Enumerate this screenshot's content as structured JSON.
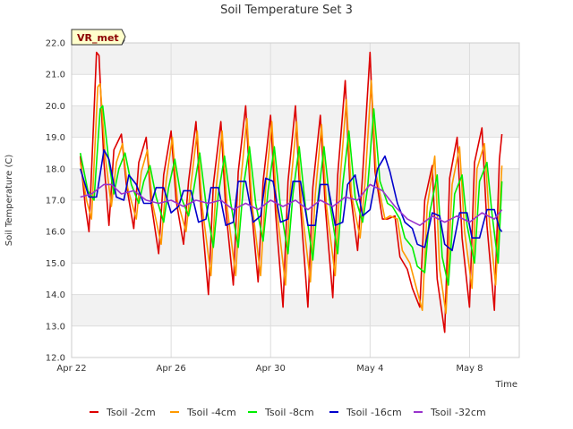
{
  "chart_data": {
    "type": "line",
    "title": "Soil Temperature Set 3",
    "xlabel": "Time",
    "ylabel": "Soil Temperature (C)",
    "site_label": "VR_met",
    "ylim": [
      12.0,
      22.0
    ],
    "y_ticks": [
      "12.0",
      "13.0",
      "14.0",
      "15.0",
      "16.0",
      "17.0",
      "18.0",
      "19.0",
      "20.0",
      "21.0",
      "22.0"
    ],
    "xlim": [
      "2025-04-22",
      "2025-05-10"
    ],
    "x_ticks": [
      {
        "label": "Apr 22",
        "day": 0
      },
      {
        "label": "Apr 26",
        "day": 4
      },
      {
        "label": "Apr 30",
        "day": 8
      },
      {
        "label": "May 4",
        "day": 12
      },
      {
        "label": "May 8",
        "day": 16
      }
    ],
    "grid": true,
    "band_background": true,
    "legend_position": "bottom",
    "x_note": "x values are days from Apr 22 (midnight)",
    "series": [
      {
        "name": "Tsoil -2cm",
        "color": "#dd0000",
        "x": [
          0.35,
          0.55,
          0.7,
          1.0,
          1.1,
          1.3,
          1.5,
          1.7,
          2.0,
          2.2,
          2.5,
          2.7,
          3.0,
          3.2,
          3.5,
          3.7,
          4.0,
          4.2,
          4.5,
          4.7,
          5.0,
          5.2,
          5.5,
          5.7,
          6.0,
          6.2,
          6.5,
          6.7,
          7.0,
          7.2,
          7.5,
          7.7,
          8.0,
          8.2,
          8.5,
          8.7,
          9.0,
          9.2,
          9.5,
          9.7,
          10.0,
          10.2,
          10.5,
          10.7,
          11.0,
          11.2,
          11.5,
          11.7,
          12.0,
          12.2,
          12.5,
          12.7,
          13.0,
          13.2,
          13.5,
          13.7,
          14.0,
          14.2,
          14.5,
          14.7,
          15.0,
          15.2,
          15.5,
          15.7,
          16.0,
          16.2,
          16.5,
          16.7,
          17.0,
          17.2,
          17.3
        ],
        "y": [
          18.4,
          16.8,
          16.0,
          21.7,
          21.6,
          18.2,
          16.2,
          18.6,
          19.1,
          17.5,
          16.1,
          18.2,
          19.0,
          16.9,
          15.3,
          17.8,
          19.2,
          17.0,
          15.6,
          17.6,
          19.5,
          16.8,
          14.0,
          17.5,
          19.5,
          16.7,
          14.3,
          17.9,
          20.0,
          17.0,
          14.4,
          17.6,
          19.7,
          16.6,
          13.6,
          17.6,
          20.0,
          16.8,
          13.6,
          17.4,
          19.7,
          16.8,
          13.9,
          17.8,
          20.8,
          17.3,
          15.4,
          17.8,
          21.7,
          17.9,
          16.4,
          16.4,
          16.5,
          15.2,
          14.8,
          14.2,
          13.6,
          17.0,
          18.1,
          14.5,
          12.8,
          17.7,
          19.0,
          15.8,
          13.6,
          18.2,
          19.3,
          16.2,
          13.5,
          18.3,
          19.1
        ]
      },
      {
        "name": "Tsoil -4cm",
        "color": "#ff9900",
        "x": [
          0.35,
          0.6,
          0.8,
          1.05,
          1.15,
          1.35,
          1.6,
          1.8,
          2.05,
          2.25,
          2.6,
          2.8,
          3.05,
          3.25,
          3.6,
          3.8,
          4.05,
          4.25,
          4.6,
          4.8,
          5.05,
          5.25,
          5.6,
          5.8,
          6.05,
          6.25,
          6.6,
          6.8,
          7.05,
          7.25,
          7.6,
          7.8,
          8.05,
          8.25,
          8.6,
          8.8,
          9.05,
          9.25,
          9.6,
          9.8,
          10.05,
          10.25,
          10.6,
          10.8,
          11.05,
          11.25,
          11.6,
          11.8,
          12.05,
          12.25,
          12.6,
          12.8,
          13.1,
          13.3,
          13.6,
          13.8,
          14.1,
          14.3,
          14.6,
          14.8,
          15.05,
          15.3,
          15.6,
          15.8,
          16.1,
          16.3,
          16.6,
          16.8,
          17.05,
          17.3
        ],
        "y": [
          18.2,
          17.0,
          16.4,
          20.6,
          20.7,
          18.4,
          16.8,
          18.2,
          18.8,
          17.4,
          16.4,
          17.9,
          18.6,
          16.9,
          15.6,
          17.6,
          19.0,
          17.0,
          16.0,
          17.5,
          19.2,
          16.8,
          14.6,
          17.3,
          19.2,
          16.8,
          14.6,
          17.6,
          19.6,
          16.9,
          14.6,
          17.4,
          19.5,
          16.7,
          14.3,
          17.4,
          19.5,
          16.8,
          14.4,
          17.2,
          19.4,
          16.8,
          14.6,
          17.7,
          20.2,
          17.2,
          15.8,
          17.6,
          20.8,
          17.8,
          16.4,
          16.5,
          16.4,
          15.4,
          15.0,
          14.4,
          13.5,
          16.8,
          18.4,
          14.8,
          13.4,
          17.5,
          18.7,
          16.0,
          14.2,
          18.0,
          18.8,
          16.3,
          14.3,
          18.1
        ]
      },
      {
        "name": "Tsoil -8cm",
        "color": "#00ee00",
        "x": [
          0.35,
          0.65,
          0.9,
          1.15,
          1.25,
          1.5,
          1.7,
          1.9,
          2.15,
          2.4,
          2.7,
          2.9,
          3.15,
          3.4,
          3.7,
          3.9,
          4.15,
          4.4,
          4.7,
          4.9,
          5.15,
          5.4,
          5.7,
          5.9,
          6.15,
          6.4,
          6.7,
          6.9,
          7.15,
          7.4,
          7.7,
          7.9,
          8.15,
          8.4,
          8.7,
          8.9,
          9.15,
          9.4,
          9.7,
          9.9,
          10.15,
          10.4,
          10.7,
          10.9,
          11.15,
          11.4,
          11.7,
          11.9,
          12.15,
          12.4,
          12.7,
          12.9,
          13.2,
          13.4,
          13.7,
          13.9,
          14.2,
          14.4,
          14.7,
          14.9,
          15.15,
          15.4,
          15.7,
          15.9,
          16.2,
          16.4,
          16.7,
          16.9,
          17.15,
          17.3
        ],
        "y": [
          18.5,
          17.3,
          17.0,
          19.9,
          20.0,
          18.2,
          17.2,
          18.0,
          18.5,
          17.5,
          16.9,
          17.6,
          18.1,
          17.1,
          16.3,
          17.4,
          18.3,
          17.1,
          16.5,
          17.3,
          18.5,
          16.9,
          15.5,
          17.2,
          18.4,
          16.9,
          15.5,
          17.4,
          18.7,
          16.9,
          15.7,
          17.3,
          18.7,
          16.8,
          15.3,
          17.2,
          18.7,
          16.8,
          15.1,
          17.0,
          18.7,
          16.8,
          15.3,
          17.5,
          19.2,
          17.1,
          16.3,
          17.4,
          19.9,
          17.6,
          16.9,
          16.8,
          16.4,
          15.8,
          15.5,
          14.9,
          14.7,
          16.6,
          17.8,
          15.2,
          14.3,
          17.2,
          17.8,
          16.2,
          15.0,
          17.6,
          18.2,
          16.6,
          15.0,
          17.6
        ]
      },
      {
        "name": "Tsoil -16cm",
        "color": "#0000cc",
        "x": [
          0.35,
          0.7,
          1.0,
          1.3,
          1.5,
          1.8,
          2.1,
          2.3,
          2.6,
          2.9,
          3.2,
          3.4,
          3.7,
          4.0,
          4.3,
          4.5,
          4.8,
          5.1,
          5.4,
          5.6,
          5.9,
          6.2,
          6.5,
          6.7,
          7.0,
          7.3,
          7.6,
          7.8,
          8.1,
          8.4,
          8.7,
          8.9,
          9.2,
          9.5,
          9.8,
          10.0,
          10.3,
          10.6,
          10.9,
          11.1,
          11.4,
          11.7,
          12.0,
          12.3,
          12.6,
          12.8,
          13.1,
          13.4,
          13.7,
          13.9,
          14.2,
          14.5,
          14.8,
          15.0,
          15.3,
          15.6,
          15.9,
          16.1,
          16.4,
          16.7,
          17.0,
          17.2,
          17.3
        ],
        "y": [
          18.0,
          17.1,
          17.1,
          18.6,
          18.3,
          17.1,
          17.0,
          17.8,
          17.5,
          16.9,
          16.9,
          17.4,
          17.4,
          16.6,
          16.8,
          17.3,
          17.3,
          16.3,
          16.4,
          17.4,
          17.4,
          16.2,
          16.3,
          17.6,
          17.6,
          16.3,
          16.5,
          17.7,
          17.6,
          16.3,
          16.4,
          17.6,
          17.6,
          16.2,
          16.2,
          17.5,
          17.5,
          16.2,
          16.3,
          17.5,
          17.8,
          16.5,
          16.7,
          18.0,
          18.4,
          17.9,
          16.9,
          16.3,
          16.1,
          15.6,
          15.5,
          16.6,
          16.5,
          15.6,
          15.4,
          16.6,
          16.6,
          15.8,
          15.8,
          16.7,
          16.7,
          16.1,
          16.0
        ]
      },
      {
        "name": "Tsoil -32cm",
        "color": "#9933cc",
        "x": [
          0.35,
          0.8,
          1.3,
          1.6,
          2.0,
          2.5,
          3.0,
          3.5,
          4.0,
          4.5,
          5.0,
          5.5,
          6.0,
          6.5,
          7.0,
          7.5,
          8.0,
          8.5,
          9.0,
          9.5,
          10.0,
          10.5,
          11.0,
          11.5,
          12.0,
          12.5,
          13.0,
          13.5,
          14.0,
          14.5,
          15.0,
          15.5,
          16.0,
          16.5,
          17.0,
          17.3
        ],
        "y": [
          17.1,
          17.2,
          17.5,
          17.5,
          17.2,
          17.3,
          17.0,
          16.9,
          17.0,
          16.8,
          17.0,
          16.9,
          17.0,
          16.7,
          16.9,
          16.7,
          17.0,
          16.8,
          17.0,
          16.7,
          17.0,
          16.8,
          17.1,
          17.0,
          17.5,
          17.3,
          16.8,
          16.4,
          16.2,
          16.5,
          16.3,
          16.5,
          16.3,
          16.6,
          16.4,
          16.7
        ]
      }
    ]
  }
}
